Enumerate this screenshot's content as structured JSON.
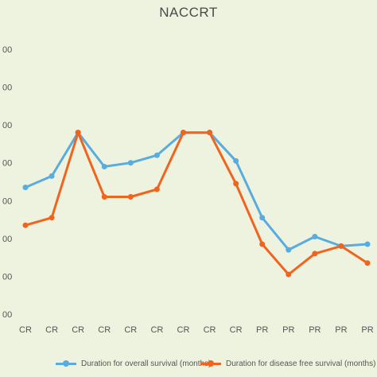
{
  "chart_data": {
    "type": "line",
    "title": "NACCRT",
    "categories": [
      "CR",
      "CR",
      "CR",
      "CR",
      "CR",
      "CR",
      "CR",
      "CR",
      "CR",
      "PR",
      "PR",
      "PR",
      "PR",
      "PR"
    ],
    "y_tick_labels": [
      "00",
      "00",
      "00",
      "00",
      "00",
      "00",
      "00",
      "00"
    ],
    "ylim": [
      0,
      7
    ],
    "series": [
      {
        "name": "Duration for overall survival (months)",
        "color": "#5aabdf",
        "values": [
          3.35,
          3.65,
          4.8,
          3.9,
          4.0,
          4.2,
          4.8,
          4.8,
          4.05,
          2.55,
          1.7,
          2.05,
          1.8,
          1.85
        ]
      },
      {
        "name": "Duration for disease free survival (months)",
        "color": "#f0641e",
        "values": [
          2.35,
          2.55,
          4.8,
          3.1,
          3.1,
          3.3,
          4.8,
          4.8,
          3.45,
          1.85,
          1.05,
          1.6,
          1.8,
          1.35
        ]
      }
    ],
    "grid": false,
    "legend_position": "bottom"
  }
}
